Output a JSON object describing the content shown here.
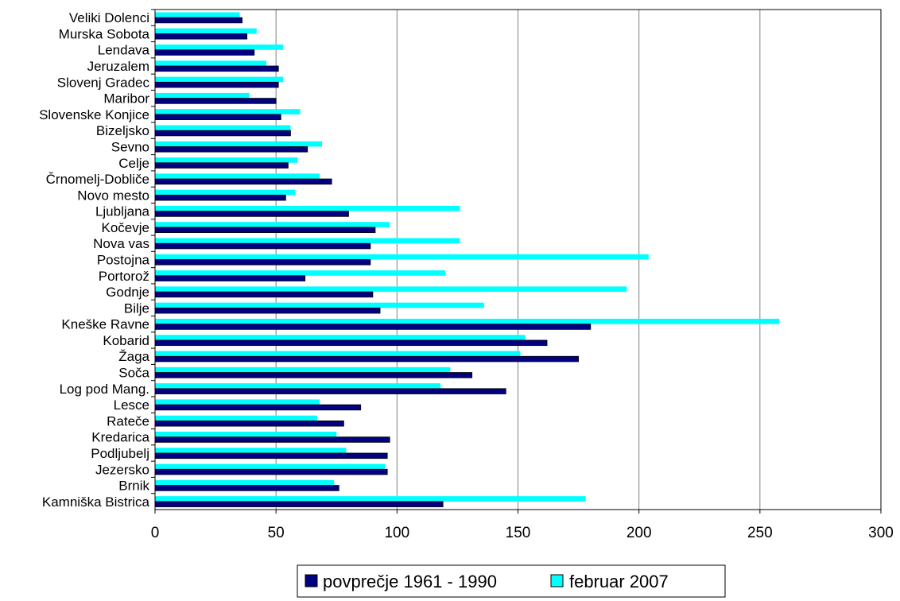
{
  "chart_data": {
    "type": "bar",
    "orientation": "horizontal",
    "categories": [
      "Veliki Dolenci",
      "Murska Sobota",
      "Lendava",
      "Jeruzalem",
      "Slovenj Gradec",
      "Maribor",
      "Slovenske Konjice",
      "Bizeljsko",
      "Sevno",
      "Celje",
      "Črnomelj-Dobliče",
      "Novo mesto",
      "Ljubljana",
      "Kočevje",
      "Nova vas",
      "Postojna",
      "Portorož",
      "Godnje",
      "Bilje",
      "Kneške Ravne",
      "Kobarid",
      "Žaga",
      "Soča",
      "Log pod Mang.",
      "Lesce",
      "Rateče",
      "Kredarica",
      "Podljubelj",
      "Jezersko",
      "Brnik",
      "Kamniška Bistrica"
    ],
    "series": [
      {
        "name": "povprečje 1961 - 1990",
        "color": "#000080",
        "values": [
          36,
          38,
          41,
          51,
          51,
          50,
          52,
          56,
          63,
          55,
          73,
          54,
          80,
          91,
          89,
          89,
          62,
          90,
          93,
          180,
          162,
          175,
          131,
          145,
          85,
          78,
          97,
          96,
          96,
          76,
          119
        ]
      },
      {
        "name": "februar 2007",
        "color": "#00FFFF",
        "values": [
          35,
          42,
          53,
          46,
          53,
          39,
          60,
          56,
          69,
          59,
          68,
          58,
          126,
          97,
          126,
          204,
          120,
          195,
          136,
          258,
          153,
          151,
          122,
          118,
          68,
          67,
          75,
          79,
          95,
          74,
          178
        ]
      }
    ],
    "xticks": [
      "0",
      "50",
      "100",
      "150",
      "200",
      "250",
      "300"
    ],
    "xlim": [
      0,
      300
    ],
    "title": "",
    "xlabel": "",
    "ylabel": "",
    "grid": "vertical",
    "legend": "bottom"
  }
}
